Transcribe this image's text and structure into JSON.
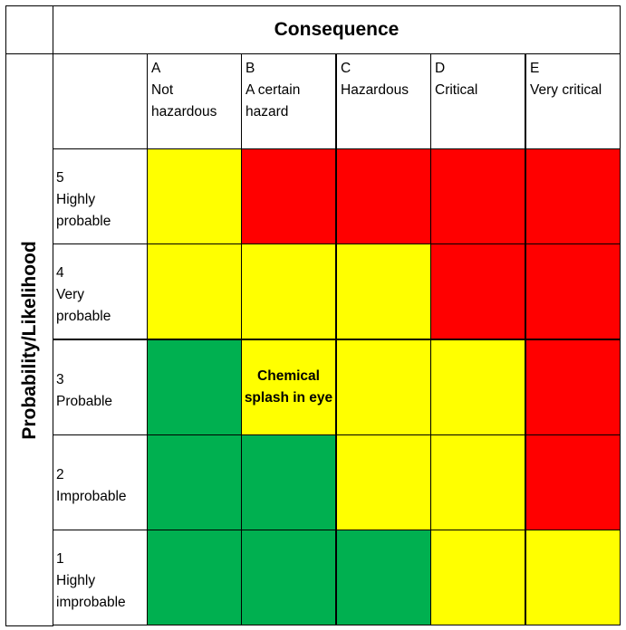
{
  "title_top": "Consequence",
  "title_side": "Probability/Likelihood",
  "consequence_columns": [
    {
      "letter": "A",
      "label_lines": [
        "Not",
        "hazardous"
      ]
    },
    {
      "letter": "B",
      "label_lines": [
        "A certain",
        "hazard"
      ]
    },
    {
      "letter": "C",
      "label_lines": [
        "Hazardous"
      ]
    },
    {
      "letter": "D",
      "label_lines": [
        "Critical"
      ]
    },
    {
      "letter": "E",
      "label_lines": [
        "Very critical"
      ]
    }
  ],
  "likelihood_rows": [
    {
      "number": "5",
      "label_lines": [
        "Highly",
        "probable"
      ],
      "colors": [
        "yellow",
        "red",
        "red",
        "red",
        "red"
      ]
    },
    {
      "number": "4",
      "label_lines": [
        "Very",
        "probable"
      ],
      "colors": [
        "yellow",
        "yellow",
        "yellow",
        "red",
        "red"
      ]
    },
    {
      "number": "3",
      "label_lines": [
        "Probable"
      ],
      "colors": [
        "green",
        "yellow",
        "yellow",
        "yellow",
        "red"
      ]
    },
    {
      "number": "2",
      "label_lines": [
        "Improbable"
      ],
      "colors": [
        "green",
        "green",
        "yellow",
        "yellow",
        "red"
      ]
    },
    {
      "number": "1",
      "label_lines": [
        "Highly",
        "improbable"
      ],
      "colors": [
        "green",
        "green",
        "green",
        "yellow",
        "yellow"
      ]
    }
  ],
  "palette": {
    "green": "#00b050",
    "yellow": "#ffff00",
    "red": "#ff0000"
  },
  "annotation": {
    "row_index": 2,
    "col_index": 1,
    "text": "Chemical\nsplash in eye"
  }
}
